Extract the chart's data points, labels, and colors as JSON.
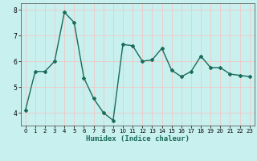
{
  "x": [
    0,
    1,
    2,
    3,
    4,
    5,
    6,
    7,
    8,
    9,
    10,
    11,
    12,
    13,
    14,
    15,
    16,
    17,
    18,
    19,
    20,
    21,
    22,
    23
  ],
  "y": [
    4.1,
    5.6,
    5.6,
    6.0,
    7.9,
    7.5,
    5.35,
    4.55,
    4.0,
    3.7,
    6.65,
    6.6,
    6.0,
    6.05,
    6.5,
    5.65,
    5.4,
    5.6,
    6.2,
    5.75,
    5.75,
    5.5,
    5.45,
    5.4
  ],
  "title": "",
  "xlabel": "Humidex (Indice chaleur)",
  "ylabel": "",
  "ylim": [
    3.5,
    8.25
  ],
  "xlim": [
    -0.5,
    23.5
  ],
  "line_color": "#1a6b5a",
  "marker": "D",
  "marker_size": 2.0,
  "line_width": 1.0,
  "bg_color": "#c8f0ee",
  "grid_color": "#f0c8c8",
  "yticks": [
    4,
    5,
    6,
    7,
    8
  ],
  "xticks": [
    0,
    1,
    2,
    3,
    4,
    5,
    6,
    7,
    8,
    9,
    10,
    11,
    12,
    13,
    14,
    15,
    16,
    17,
    18,
    19,
    20,
    21,
    22,
    23
  ]
}
